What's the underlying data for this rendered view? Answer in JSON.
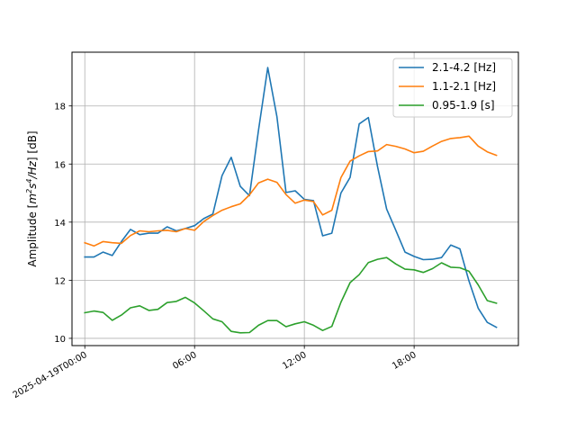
{
  "chart_data": {
    "type": "line",
    "title": "",
    "xlabel": "",
    "ylabel_parts": [
      "Amplitude [",
      "m",
      "2",
      "s",
      "4",
      "/Hz",
      "] [dB]"
    ],
    "x_start": "2025-04-19T00:00",
    "x_step_hours": 0.5,
    "xlim_hours": [
      -0.7,
      23.7
    ],
    "ylim": [
      9.75,
      19.85
    ],
    "xticks": [
      {
        "hour": 0,
        "label": "2025-04-19T00:00"
      },
      {
        "hour": 6,
        "label": "06:00"
      },
      {
        "hour": 12,
        "label": "12:00"
      },
      {
        "hour": 18,
        "label": "18:00"
      }
    ],
    "yticks": [
      10,
      12,
      14,
      16,
      18
    ],
    "grid": true,
    "legend_position": "top-right",
    "series": [
      {
        "name": "2.1-4.2 [Hz]",
        "color": "#1f77b4",
        "values": [
          12.8,
          12.8,
          12.97,
          12.85,
          13.33,
          13.75,
          13.57,
          13.62,
          13.62,
          13.84,
          13.7,
          13.78,
          13.88,
          14.12,
          14.28,
          15.6,
          16.23,
          15.23,
          14.91,
          17.18,
          19.32,
          17.63,
          15.02,
          15.08,
          14.78,
          14.74,
          13.53,
          13.62,
          15.0,
          15.54,
          17.38,
          17.6,
          15.91,
          14.45,
          13.72,
          12.97,
          12.82,
          12.71,
          12.72,
          12.78,
          13.21,
          13.08,
          11.97,
          11.04,
          10.55,
          10.38
        ]
      },
      {
        "name": "1.1-2.1 [Hz]",
        "color": "#ff7f0e",
        "values": [
          13.29,
          13.18,
          13.33,
          13.29,
          13.27,
          13.54,
          13.7,
          13.67,
          13.7,
          13.72,
          13.67,
          13.78,
          13.72,
          14.02,
          14.23,
          14.41,
          14.53,
          14.63,
          14.94,
          15.35,
          15.48,
          15.37,
          14.95,
          14.65,
          14.76,
          14.71,
          14.25,
          14.41,
          15.53,
          16.1,
          16.28,
          16.43,
          16.45,
          16.67,
          16.61,
          16.52,
          16.39,
          16.44,
          16.62,
          16.78,
          16.88,
          16.91,
          16.96,
          16.62,
          16.42,
          16.3
        ]
      },
      {
        "name": "0.95-1.9 [s]",
        "color": "#2ca02c",
        "values": [
          10.88,
          10.94,
          10.89,
          10.62,
          10.8,
          11.05,
          11.12,
          10.96,
          11.0,
          11.23,
          11.27,
          11.41,
          11.22,
          10.95,
          10.67,
          10.57,
          10.24,
          10.19,
          10.2,
          10.45,
          10.61,
          10.61,
          10.4,
          10.5,
          10.57,
          10.45,
          10.27,
          10.41,
          11.24,
          11.92,
          12.19,
          12.61,
          12.72,
          12.78,
          12.56,
          12.38,
          12.36,
          12.27,
          12.4,
          12.6,
          12.45,
          12.43,
          12.31,
          11.84,
          11.3,
          11.21
        ]
      }
    ]
  }
}
